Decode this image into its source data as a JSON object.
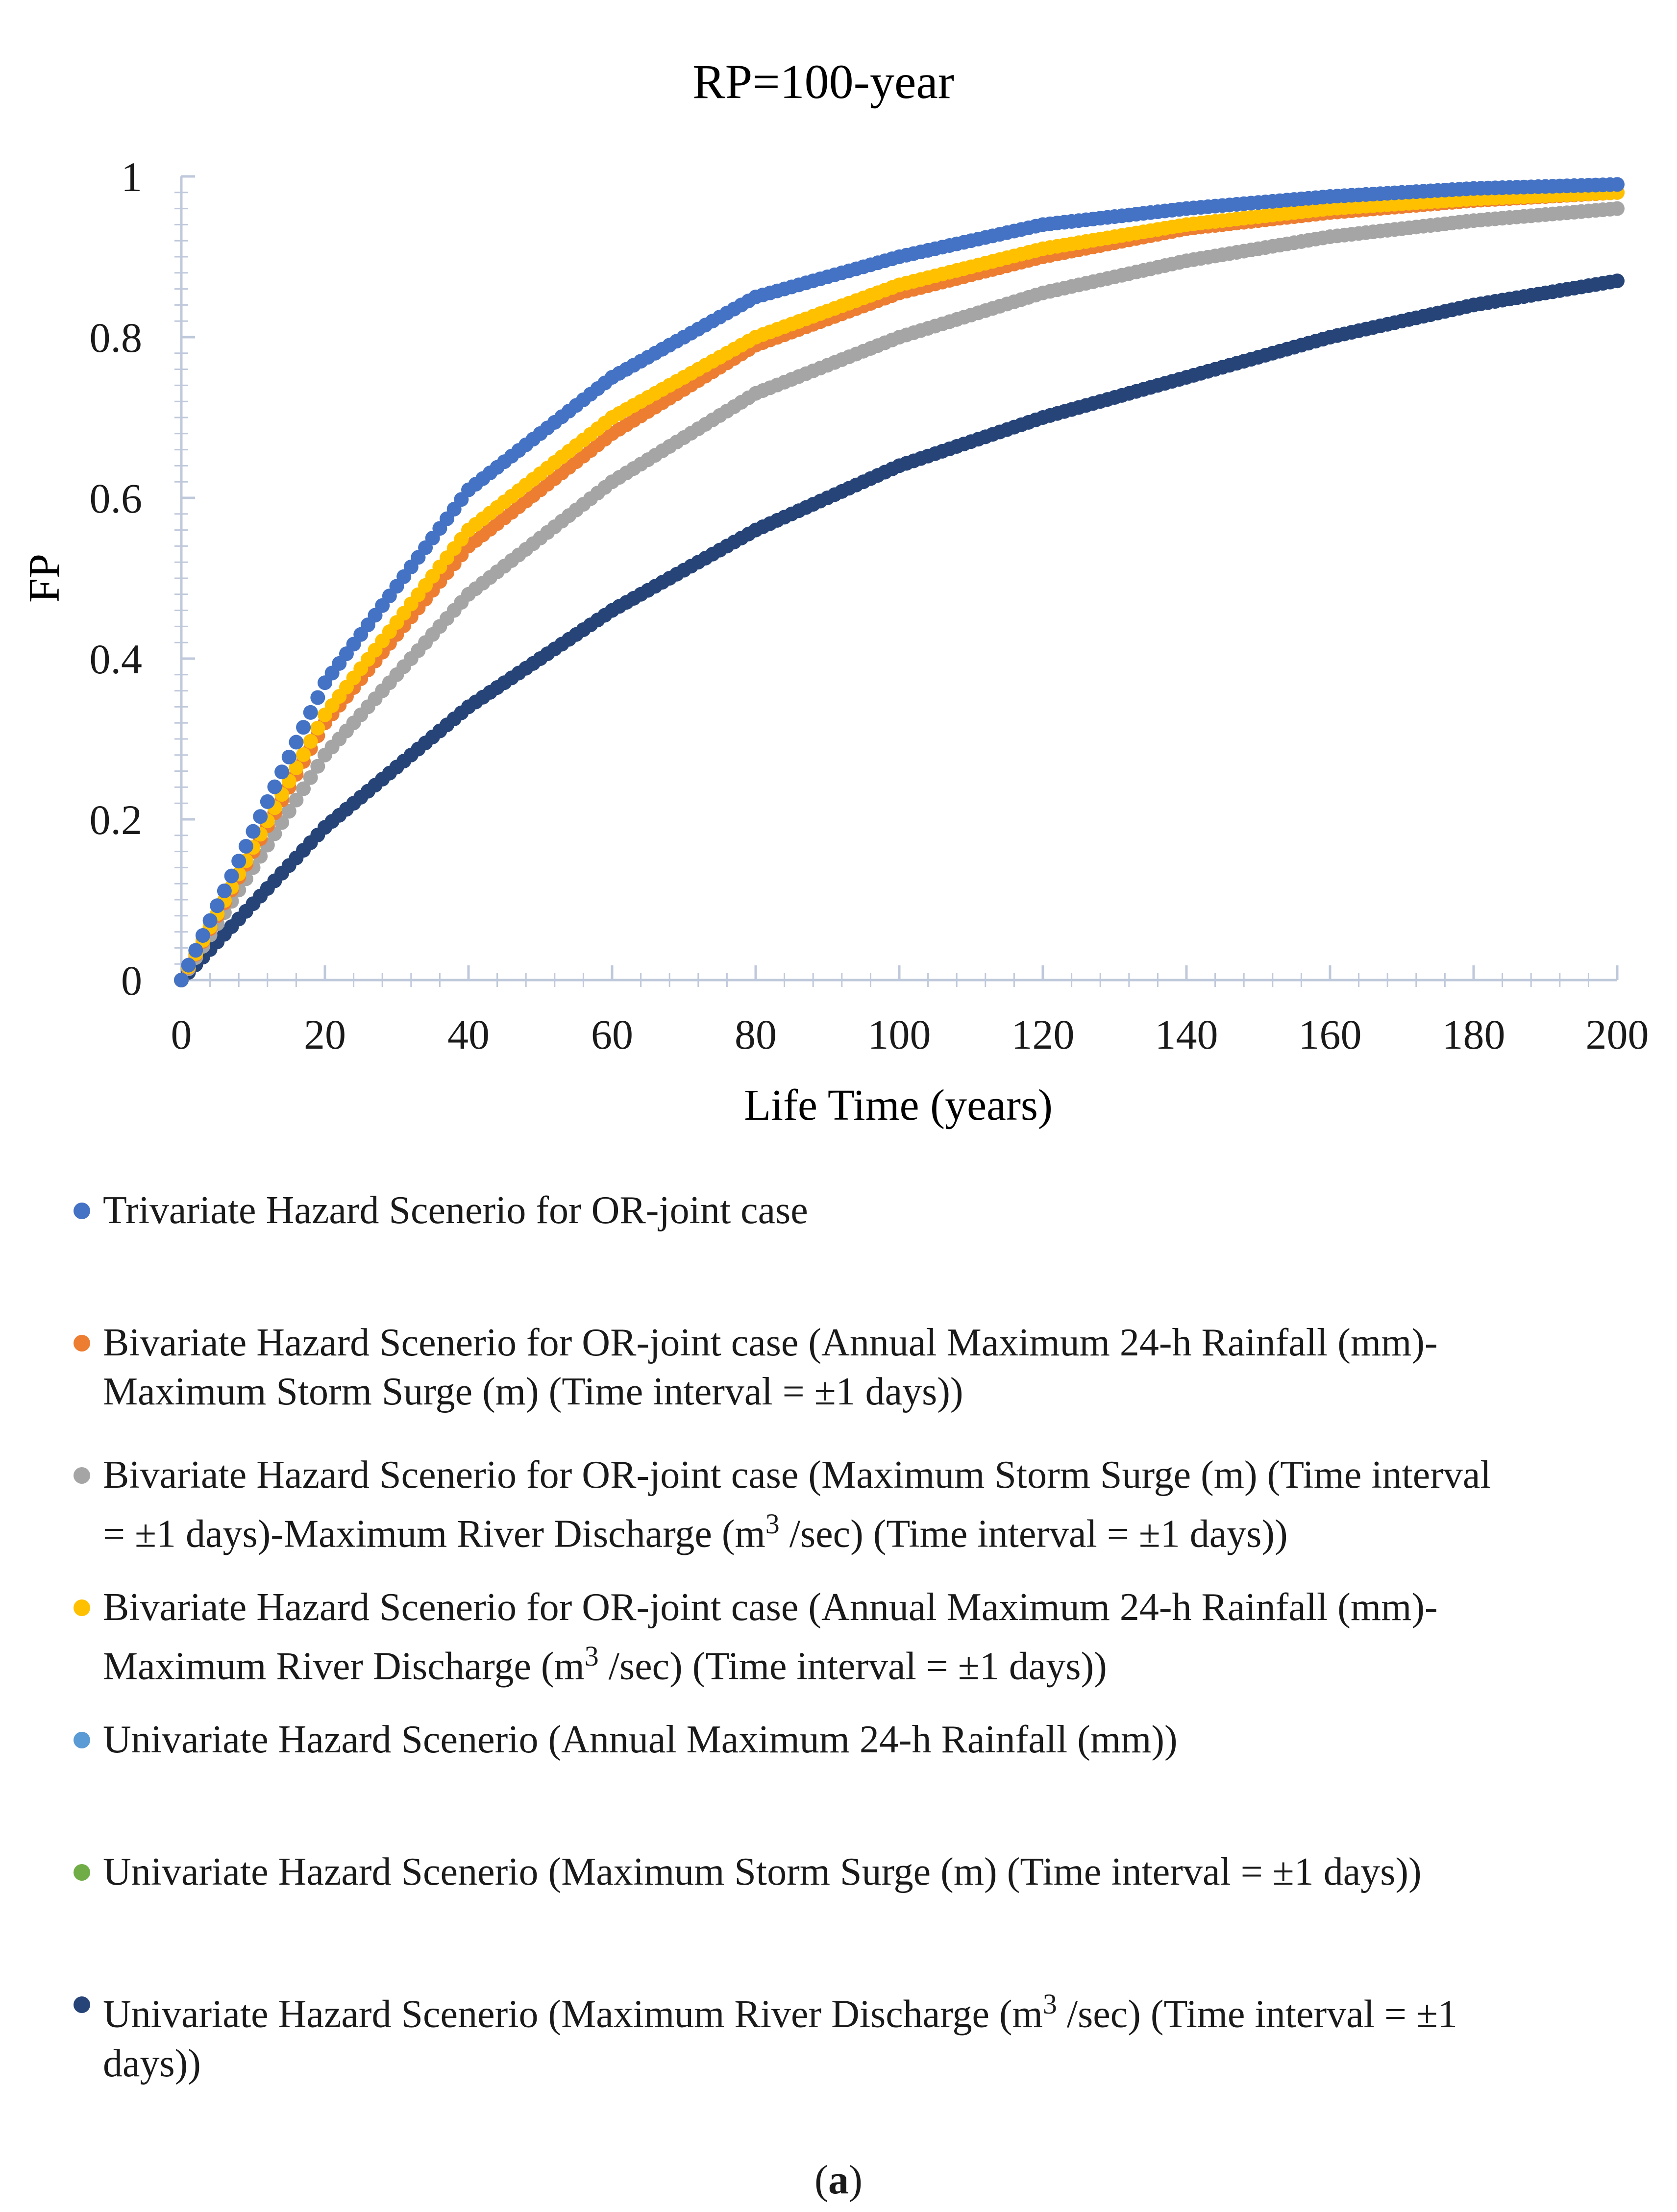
{
  "chart_data": {
    "type": "scatter",
    "title": "RP=100-year",
    "xlabel": "Life Time (years)",
    "ylabel": "FP",
    "xlim": [
      0,
      200
    ],
    "ylim": [
      0,
      1
    ],
    "xticks": [
      "0",
      "20",
      "40",
      "60",
      "80",
      "100",
      "120",
      "140",
      "160",
      "180",
      "200"
    ],
    "yticks": [
      "0",
      "0.2",
      "0.4",
      "0.6",
      "0.8",
      "1"
    ],
    "x": [
      0,
      20,
      40,
      60,
      80,
      100,
      120,
      140,
      160,
      180,
      200
    ],
    "series": [
      {
        "name": "Trivariate Hazard Scenerio for OR-joint case",
        "color": "#4472C4",
        "values": [
          0,
          0.37,
          0.61,
          0.75,
          0.85,
          0.9,
          0.94,
          0.96,
          0.975,
          0.985,
          0.99
        ]
      },
      {
        "name": "Bivariate Hazard Scenerio for OR-joint case (Annual Maximum 24-h Rainfall (mm)-Maximum Storm Surge (m) (Time interval = ±1 days))",
        "color": "#ED7D31",
        "values": [
          0,
          0.32,
          0.54,
          0.68,
          0.79,
          0.855,
          0.9,
          0.935,
          0.955,
          0.97,
          0.98
        ]
      },
      {
        "name": "Bivariate Hazard Scenerio for OR-joint case (Maximum Storm Surge (m) (Time interval = ±1 days)-Maximum River Discharge (m³ /sec) (Time interval = ±1 days))",
        "color": "#A5A5A5",
        "values": [
          0,
          0.28,
          0.48,
          0.62,
          0.73,
          0.8,
          0.855,
          0.895,
          0.925,
          0.945,
          0.96
        ]
      },
      {
        "name": "Bivariate Hazard Scenerio for OR-joint case (Annual Maximum 24-h Rainfall (mm)-Maximum River Discharge (m³ /sec) (Time interval = ±1 days))",
        "color": "#FFC000",
        "values": [
          0,
          0.33,
          0.56,
          0.7,
          0.8,
          0.865,
          0.91,
          0.94,
          0.96,
          0.972,
          0.98
        ]
      },
      {
        "name": "Univariate Hazard Scenerio (Annual Maximum 24-h Rainfall (mm))",
        "color": "#5B9BD5",
        "values": []
      },
      {
        "name": "Univariate Hazard Scenerio (Maximum Storm Surge (m) (Time interval = ±1 days))",
        "color": "#70AD47",
        "values": []
      },
      {
        "name": "Univariate Hazard Scenerio (Maximum River Discharge (m³ /sec) (Time interval = ±1 days))",
        "color": "#264478",
        "values": [
          0,
          0.19,
          0.34,
          0.46,
          0.56,
          0.64,
          0.7,
          0.75,
          0.8,
          0.84,
          0.87
        ]
      }
    ]
  },
  "legend": [
    {
      "text": "Trivariate Hazard Scenerio for OR-joint case"
    },
    {
      "text": "Bivariate Hazard Scenerio for OR-joint case (Annual Maximum 24-h Rainfall (mm)-",
      "text2": "Maximum Storm Surge (m) (Time interval = ±1 days))"
    },
    {
      "text": "Bivariate Hazard Scenerio for OR-joint case (Maximum Storm Surge (m) (Time interval",
      "text2a": "= ±1 days)-Maximum River Discharge (m",
      "sup": "3",
      "text2b": " /sec) (Time interval = ±1 days))"
    },
    {
      "text": "Bivariate Hazard Scenerio for OR-joint case (Annual Maximum 24-h Rainfall (mm)-",
      "text2a": "Maximum River Discharge (m",
      "sup": "3",
      "text2b": " /sec) (Time interval = ±1 days))"
    },
    {
      "text": "Univariate Hazard Scenerio (Annual Maximum 24-h Rainfall (mm))"
    },
    {
      "text": "Univariate Hazard Scenerio (Maximum Storm Surge (m) (Time interval = ±1 days))"
    },
    {
      "text1a": "Univariate Hazard Scenerio (Maximum River Discharge (m",
      "sup": "3",
      "text1b": " /sec) (Time interval = ±1",
      "text2": "days))"
    }
  ],
  "caption": {
    "open": "(",
    "label": "a",
    "close": ")"
  }
}
